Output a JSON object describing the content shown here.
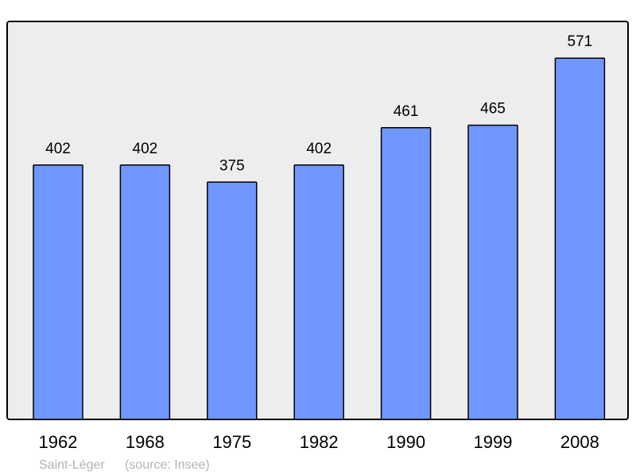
{
  "chart_data": {
    "type": "bar",
    "categories": [
      "1962",
      "1968",
      "1975",
      "1982",
      "1990",
      "1999",
      "2008"
    ],
    "values": [
      402,
      402,
      375,
      402,
      461,
      465,
      571
    ],
    "title": "",
    "xlabel": "",
    "ylabel": "",
    "ylim": [
      0,
      629
    ],
    "grid": false,
    "bar_color": "#7096ff",
    "plot_background": "#ededed"
  },
  "footer": {
    "place": "Saint-Léger",
    "source": "(source: Insee)"
  }
}
